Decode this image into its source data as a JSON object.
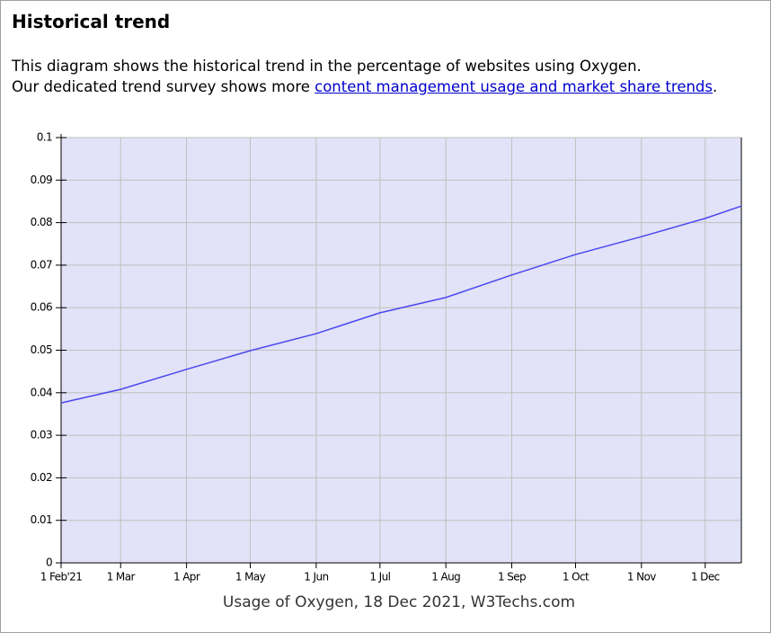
{
  "heading": "Historical trend",
  "paragraph": [
    "This diagram shows the historical trend in the percentage of websites using Oxygen.",
    "Our dedicated trend survey shows more ",
    "content management usage and market share trends",
    "."
  ],
  "chart_data": {
    "type": "line",
    "x_label": "Usage of Oxygen, 18 Dec 2021, W3Techs.com",
    "x": [
      "2021-02-01",
      "2021-03-01",
      "2021-04-01",
      "2021-05-01",
      "2021-06-01",
      "2021-07-01",
      "2021-08-01",
      "2021-09-01",
      "2021-10-01",
      "2021-11-01",
      "2021-12-01",
      "2021-12-18"
    ],
    "series": [
      {
        "name": "Oxygen",
        "color": "#4848f0",
        "values": [
          0.0376,
          0.0408,
          0.0455,
          0.0499,
          0.0539,
          0.0588,
          0.0624,
          0.0677,
          0.0725,
          0.0767,
          0.081,
          0.0839
        ]
      }
    ],
    "xlim": [
      "2021-02-01",
      "2021-12-18"
    ],
    "xticks": [
      {
        "value": "2021-02-01",
        "label": "1 Feb'21"
      },
      {
        "value": "2021-03-01",
        "label": "1 Mar"
      },
      {
        "value": "2021-04-01",
        "label": "1 Apr"
      },
      {
        "value": "2021-05-01",
        "label": "1 May"
      },
      {
        "value": "2021-06-01",
        "label": "1 Jun"
      },
      {
        "value": "2021-07-01",
        "label": "1 Jul"
      },
      {
        "value": "2021-08-01",
        "label": "1 Aug"
      },
      {
        "value": "2021-09-01",
        "label": "1 Sep"
      },
      {
        "value": "2021-10-01",
        "label": "1 Oct"
      },
      {
        "value": "2021-11-01",
        "label": "1 Nov"
      },
      {
        "value": "2021-12-01",
        "label": "1 Dec"
      }
    ],
    "ylim": [
      0,
      0.1
    ],
    "yticks": [
      0,
      0.01,
      0.02,
      0.03,
      0.04,
      0.05,
      0.06,
      0.07,
      0.08,
      0.09,
      0.1
    ],
    "grid": true,
    "background": "#e2e2f8"
  }
}
